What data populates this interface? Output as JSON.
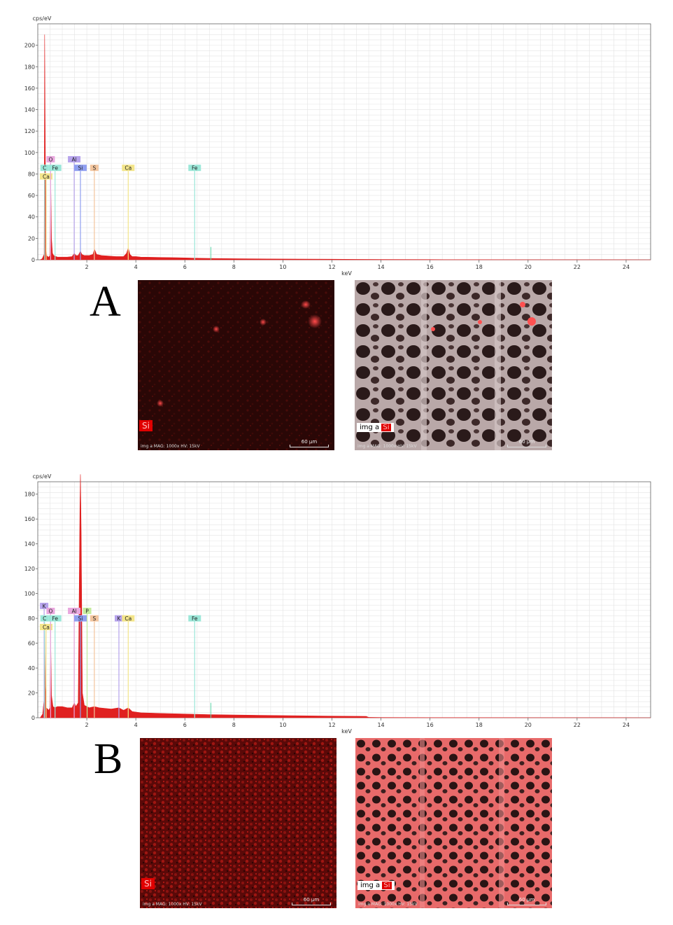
{
  "colors": {
    "fill": "#e02020",
    "grid": "#e4e4e4",
    "axis": "#666666"
  },
  "panels": [
    {
      "letter": "A",
      "si_label": "Si",
      "img_label": "img a",
      "caption": "img a  MAG: 1000x  HV: 15kV",
      "scalebar": "60 µm"
    },
    {
      "letter": "B",
      "si_label": "Si",
      "img_label": "img a",
      "caption": "img a  MAG: 1000x  HV: 15kV",
      "scalebar": "60 µm"
    }
  ],
  "chart_data": [
    {
      "type": "area",
      "ylabel": "cps/eV",
      "xlabel": "keV",
      "xlim": [
        0,
        25
      ],
      "ylim": [
        0,
        220
      ],
      "xticks": [
        2,
        4,
        6,
        8,
        10,
        12,
        14,
        16,
        18,
        20,
        22,
        24
      ],
      "yticks": [
        0,
        20,
        40,
        60,
        80,
        100,
        120,
        140,
        160,
        180,
        200
      ],
      "spectrum": {
        "x": [
          0.1,
          0.18,
          0.26,
          0.28,
          0.3,
          0.33,
          0.36,
          0.4,
          0.45,
          0.5,
          0.53,
          0.56,
          0.6,
          0.65,
          0.7,
          0.75,
          0.8,
          1.0,
          1.2,
          1.4,
          1.49,
          1.55,
          1.65,
          1.74,
          1.8,
          1.9,
          2.1,
          2.25,
          2.31,
          2.4,
          2.6,
          2.9,
          3.2,
          3.5,
          3.62,
          3.69,
          3.76,
          3.85,
          4.01,
          4.2,
          5.0,
          6.0,
          6.4,
          7.0,
          8.0,
          10.0,
          12.0,
          14.0,
          16.0,
          18.0,
          20.0,
          25.0
        ],
        "y": [
          0,
          1,
          5,
          210,
          130,
          15,
          4,
          3,
          2.5,
          4,
          72,
          20,
          6,
          4,
          3.5,
          3,
          2.5,
          2.5,
          2.5,
          3,
          6,
          4,
          4,
          8,
          5,
          4,
          4,
          5,
          10,
          5,
          4,
          3.5,
          3,
          3,
          6,
          11,
          5,
          3,
          3,
          2.5,
          2.2,
          1.8,
          1.5,
          1.3,
          1.0,
          0.7,
          0.5,
          0.3,
          0.2,
          0.1,
          0.05,
          0
        ]
      },
      "element_lines": [
        {
          "label": "C",
          "energy": 0.277,
          "height": 88,
          "color": "#9be7d8"
        },
        {
          "label": "Ca",
          "energy": 0.341,
          "height": 80,
          "color": "#f3e58a"
        },
        {
          "label": "O",
          "energy": 0.525,
          "height": 96,
          "color": "#e9a7de"
        },
        {
          "label": "Fe",
          "energy": 0.705,
          "height": 88,
          "color": "#9be7d8"
        },
        {
          "label": "Al",
          "energy": 1.486,
          "height": 96,
          "color": "#b6a3ec"
        },
        {
          "label": "Si",
          "energy": 1.74,
          "height": 88,
          "color": "#8f9ff0"
        },
        {
          "label": "S",
          "energy": 2.307,
          "height": 88,
          "color": "#f3c59e"
        },
        {
          "label": "Ca",
          "energy": 3.69,
          "height": 88,
          "color": "#f3e58a"
        },
        {
          "label": "Fe",
          "energy": 6.4,
          "height": 88,
          "color": "#9be7d8"
        }
      ],
      "minor_peaks": [
        {
          "energy": 7.06,
          "height": 12
        }
      ]
    },
    {
      "type": "area",
      "ylabel": "cps/eV",
      "xlabel": "keV",
      "xlim": [
        0,
        25
      ],
      "ylim": [
        0,
        190
      ],
      "xticks": [
        2,
        4,
        6,
        8,
        10,
        12,
        14,
        16,
        18,
        20,
        22,
        24
      ],
      "yticks": [
        0,
        20,
        40,
        60,
        80,
        100,
        120,
        140,
        160,
        180
      ],
      "spectrum": {
        "x": [
          0.1,
          0.2,
          0.26,
          0.28,
          0.31,
          0.35,
          0.45,
          0.5,
          0.53,
          0.56,
          0.62,
          0.7,
          0.8,
          1.0,
          1.2,
          1.4,
          1.49,
          1.55,
          1.65,
          1.72,
          1.74,
          1.77,
          1.82,
          1.9,
          2.1,
          2.31,
          2.5,
          3.0,
          3.31,
          3.5,
          3.69,
          3.85,
          4.2,
          5.0,
          6.0,
          7.0,
          8.0,
          10.0,
          12.0,
          13.4,
          13.5,
          14.0,
          16.0,
          18.0,
          20.0,
          25.0
        ],
        "y": [
          0,
          3,
          15,
          70,
          25,
          8,
          6,
          8,
          60,
          18,
          9,
          8,
          9,
          9,
          8,
          8,
          12,
          9,
          12,
          170,
          196,
          150,
          20,
          10,
          8,
          9,
          8,
          7,
          8,
          6,
          8,
          5,
          4,
          3.5,
          3,
          2.5,
          2.2,
          1.7,
          1.3,
          1.1,
          0.3,
          0.2,
          0.1,
          0.1,
          0.05,
          0
        ]
      },
      "element_lines": [
        {
          "label": "K",
          "energy": 0.26,
          "height": 92,
          "color": "#b6a3ec"
        },
        {
          "label": "C",
          "energy": 0.277,
          "height": 82,
          "color": "#9be7d8"
        },
        {
          "label": "Ca",
          "energy": 0.341,
          "height": 75,
          "color": "#f3e58a"
        },
        {
          "label": "O",
          "energy": 0.525,
          "height": 88,
          "color": "#e9a7de"
        },
        {
          "label": "Fe",
          "energy": 0.705,
          "height": 82,
          "color": "#9be7d8"
        },
        {
          "label": "Al",
          "energy": 1.486,
          "height": 88,
          "color": "#e9a7de"
        },
        {
          "label": "P",
          "energy": 2.013,
          "height": 88,
          "color": "#c5ec9e"
        },
        {
          "label": "Si",
          "energy": 1.74,
          "height": 82,
          "color": "#8f9ff0"
        },
        {
          "label": "S",
          "energy": 2.307,
          "height": 82,
          "color": "#f3c59e"
        },
        {
          "label": "K",
          "energy": 3.31,
          "height": 82,
          "color": "#b6a3ec"
        },
        {
          "label": "Ca",
          "energy": 3.69,
          "height": 82,
          "color": "#f3e58a"
        },
        {
          "label": "Fe",
          "energy": 6.4,
          "height": 82,
          "color": "#9be7d8"
        }
      ],
      "minor_peaks": [
        {
          "energy": 7.06,
          "height": 12
        }
      ]
    }
  ]
}
